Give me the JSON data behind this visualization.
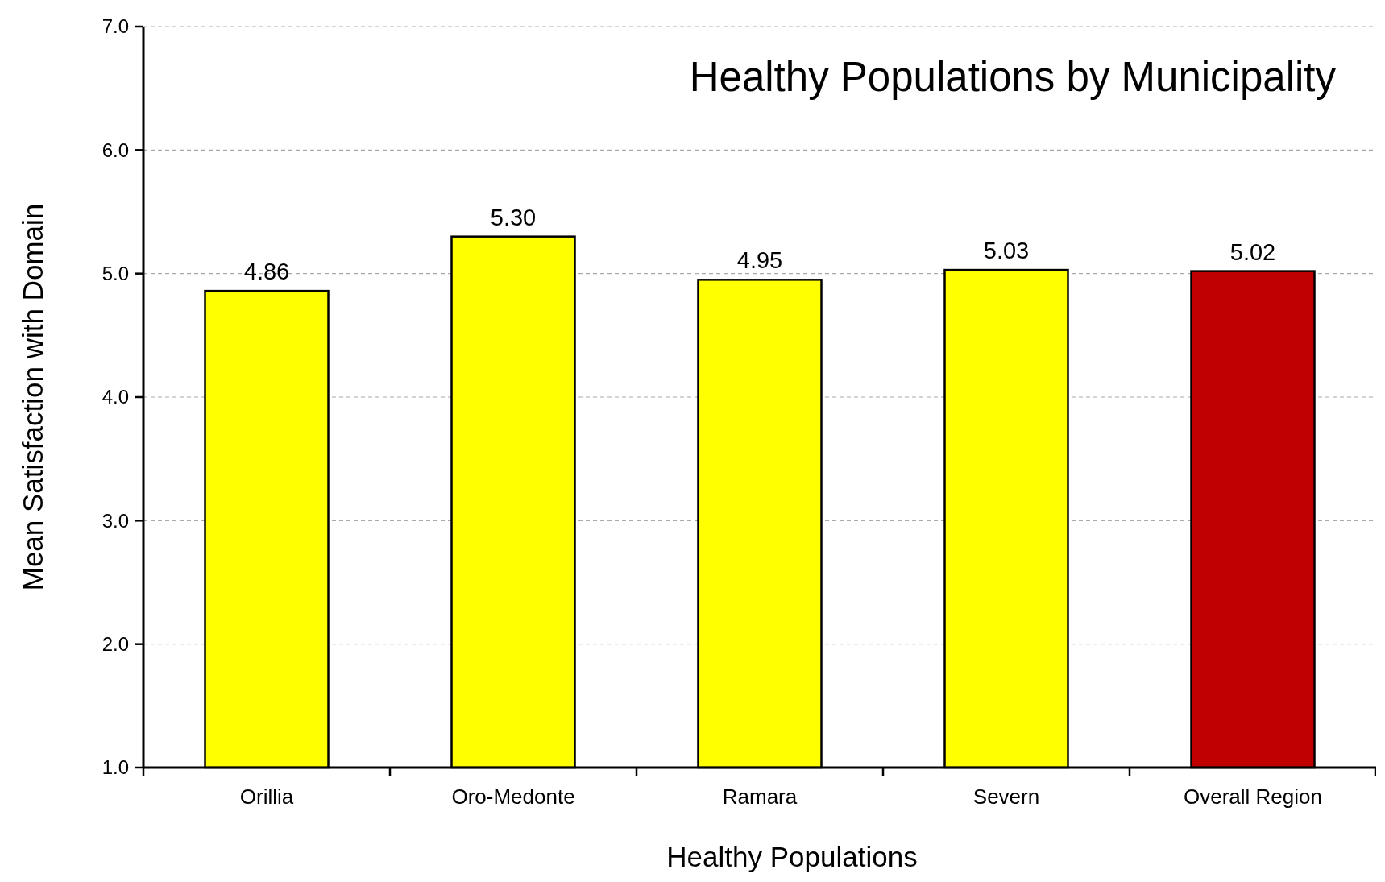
{
  "chart_data": {
    "type": "bar",
    "title": "Healthy Populations by Municipality",
    "xlabel": "Healthy Populations",
    "ylabel": "Mean Satisfaction with Domain",
    "categories": [
      "Orillia",
      "Oro-Medonte",
      "Ramara",
      "Severn",
      "Overall Region"
    ],
    "values": [
      4.86,
      5.3,
      4.95,
      5.03,
      5.02
    ],
    "colors": [
      "#ffff00",
      "#ffff00",
      "#ffff00",
      "#ffff00",
      "#c00000"
    ],
    "value_labels": [
      "4.86",
      "5.30",
      "4.95",
      "5.03",
      "5.02"
    ],
    "ylim": [
      1,
      7
    ],
    "yticks": [
      {
        "value": 1,
        "label": "1.0"
      },
      {
        "value": 2,
        "label": "2.0"
      },
      {
        "value": 3,
        "label": "3.0"
      },
      {
        "value": 4,
        "label": "4.0"
      },
      {
        "value": 5,
        "label": "5.0"
      },
      {
        "value": 6,
        "label": "6.0"
      },
      {
        "value": 7,
        "label": "7.0"
      }
    ],
    "grid": "y"
  }
}
